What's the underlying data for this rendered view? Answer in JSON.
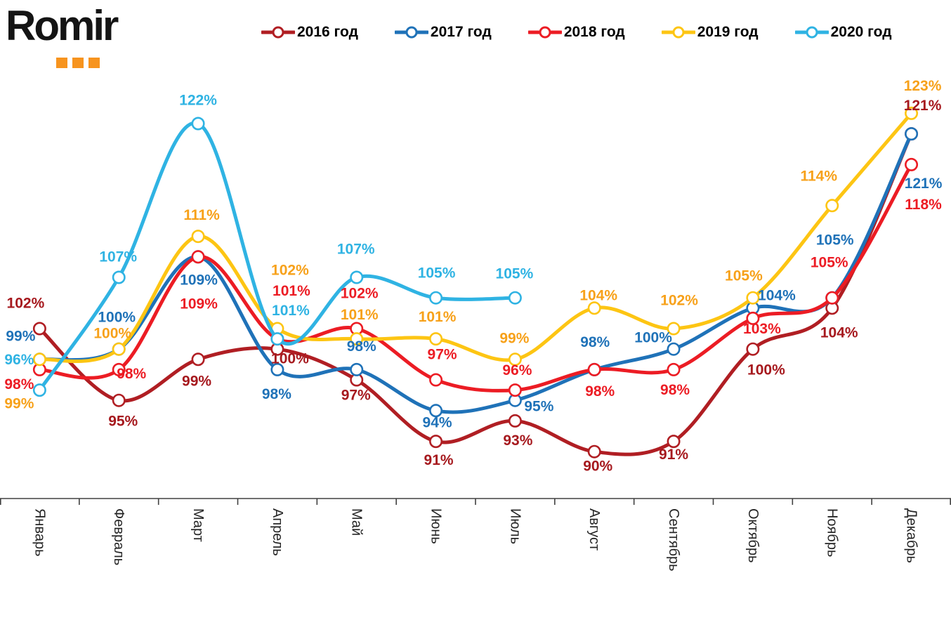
{
  "logo": {
    "text": "Romir",
    "dots_color": "#F7941E"
  },
  "chart_data": {
    "type": "line",
    "title": "",
    "unit": "%",
    "categories": [
      "Январь",
      "Февраль",
      "Март",
      "Апрель",
      "Май",
      "Июнь",
      "Июль",
      "Август",
      "Сентябрь",
      "Октябрь",
      "Ноябрь",
      "Декабрь"
    ],
    "ylim": [
      88,
      126
    ],
    "grid": false,
    "legend_position": "top",
    "axis_color": "#404040",
    "month_label_color": "#262626",
    "series": [
      {
        "name": "2016 год",
        "color": "#B01E23",
        "label_color": "#A6191E",
        "values": [
          102,
          95,
          99,
          100,
          97,
          91,
          93,
          90,
          91,
          100,
          104,
          121
        ],
        "label_offsets": [
          [
            -20,
            -36
          ],
          [
            6,
            30
          ],
          [
            -2,
            31
          ],
          [
            18,
            14
          ],
          [
            -1,
            22
          ],
          [
            4,
            27
          ],
          [
            4,
            28
          ],
          [
            5,
            21
          ],
          [
            0,
            19
          ],
          [
            19,
            30
          ],
          [
            10,
            35
          ],
          [
            16,
            -40
          ]
        ]
      },
      {
        "name": "2017 год",
        "color": "#1F72B8",
        "label_color": "#1F72B8",
        "values": [
          99,
          100,
          109,
          98,
          98,
          94,
          95,
          98,
          100,
          104,
          105,
          121
        ],
        "label_offsets": [
          [
            -27,
            -33
          ],
          [
            -3,
            -45
          ],
          [
            1,
            33
          ],
          [
            -1,
            35
          ],
          [
            7,
            -33
          ],
          [
            2,
            17
          ],
          [
            34,
            9
          ],
          [
            1,
            -39
          ],
          [
            -29,
            -16
          ],
          [
            34,
            -18
          ],
          [
            4,
            -82
          ],
          [
            17,
            71
          ]
        ]
      },
      {
        "name": "2018 год",
        "color": "#EC1C24",
        "label_color": "#EC1C24",
        "values": [
          98,
          98,
          109,
          101,
          102,
          97,
          96,
          98,
          98,
          103,
          105,
          118
        ],
        "label_offsets": [
          [
            -29,
            21
          ],
          [
            18,
            6
          ],
          [
            1,
            67
          ],
          [
            20,
            -68
          ],
          [
            4,
            -50
          ],
          [
            9,
            -36
          ],
          [
            3,
            -28
          ],
          [
            8,
            31
          ],
          [
            2,
            29
          ],
          [
            13,
            15
          ],
          [
            -4,
            -50
          ],
          [
            17,
            57
          ]
        ]
      },
      {
        "name": "2019 год",
        "color": "#FDC513",
        "label_color": "#F7A11A",
        "values": [
          99,
          100,
          111,
          102,
          101,
          101,
          99,
          104,
          102,
          105,
          114,
          123
        ],
        "label_offsets": [
          [
            -29,
            63
          ],
          [
            -9,
            -22
          ],
          [
            5,
            -30
          ],
          [
            18,
            -83
          ],
          [
            4,
            -34
          ],
          [
            2,
            -31
          ],
          [
            -1,
            -30
          ],
          [
            6,
            -18
          ],
          [
            8,
            -40
          ],
          [
            -13,
            -31
          ],
          [
            -19,
            -42
          ],
          [
            16,
            -39
          ]
        ]
      },
      {
        "name": "2020 год",
        "color": "#2FB3E3",
        "label_color": "#2FB3E3",
        "values": [
          96,
          107,
          122,
          101,
          107,
          105,
          105,
          null,
          null,
          null,
          null,
          null
        ],
        "label_offsets": [
          [
            -29,
            -43
          ],
          [
            -1,
            -29
          ],
          [
            0,
            -33
          ],
          [
            19,
            -40
          ],
          [
            -1,
            -40
          ],
          [
            1,
            -35
          ],
          [
            -1,
            -34
          ]
        ]
      }
    ]
  }
}
